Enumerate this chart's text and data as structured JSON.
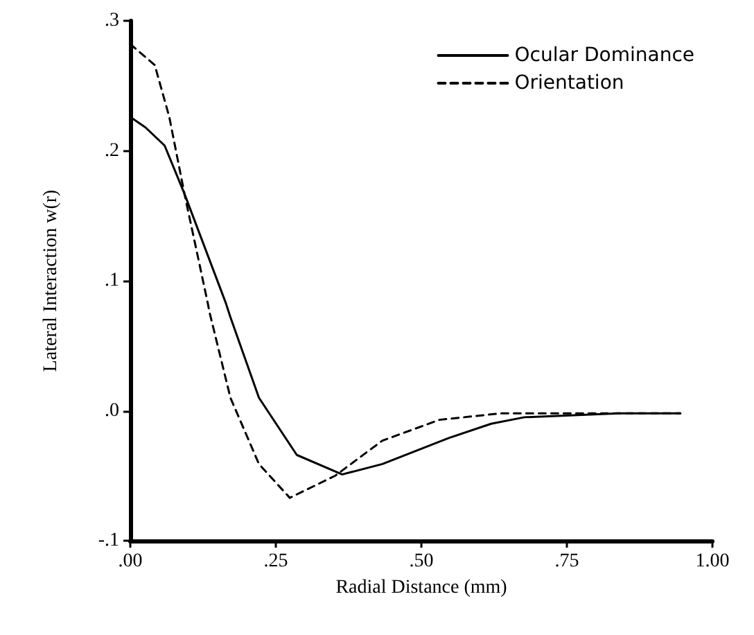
{
  "chart_data": {
    "type": "line",
    "xlabel": "Radial Distance (mm)",
    "ylabel": "Lateral Interaction w(r)",
    "xlim": [
      0,
      1
    ],
    "xticks": [
      {
        "value": 0,
        "label": ".00"
      },
      {
        "value": 0.25,
        "label": ".25"
      },
      {
        "value": 0.5,
        "label": ".50"
      },
      {
        "value": 0.75,
        "label": ".75"
      },
      {
        "value": 1,
        "label": "1.00"
      }
    ],
    "ylim": [
      -0.1,
      0.3
    ],
    "yticks": [
      {
        "value": -0.1,
        "label": "-.1"
      },
      {
        "value": 0,
        "label": ".0"
      },
      {
        "value": 0.1,
        "label": ".1"
      },
      {
        "value": 0.2,
        "label": ".2"
      },
      {
        "value": 0.3,
        "label": ".3"
      }
    ],
    "grid": false,
    "legend": "top right",
    "marker": "none",
    "series": [
      {
        "name": "Ocular Dominance",
        "color": "#000000",
        "line_style": "solid",
        "x": [
          0,
          0.026,
          0.059,
          0.093,
          0.164,
          0.172,
          0.221,
          0.286,
          0.364,
          0.433,
          0.547,
          0.62,
          0.677,
          0.84,
          0.945
        ],
        "values": [
          0.226,
          0.218,
          0.204,
          0.167,
          0.083,
          0.072,
          0.01,
          -0.034,
          -0.049,
          -0.041,
          -0.021,
          -0.01,
          -0.005,
          -0.002,
          -0.002
        ]
      },
      {
        "name": "Orientation",
        "color": "#000000",
        "line_style": "dashed",
        "x": [
          0,
          0.042,
          0.067,
          0.093,
          0.133,
          0.136,
          0.172,
          0.221,
          0.274,
          0.352,
          0.433,
          0.531,
          0.637,
          0.945
        ],
        "values": [
          0.282,
          0.266,
          0.226,
          0.167,
          0.083,
          0.076,
          0.01,
          -0.041,
          -0.067,
          -0.05,
          -0.023,
          -0.007,
          -0.002,
          -0.002
        ]
      }
    ]
  }
}
